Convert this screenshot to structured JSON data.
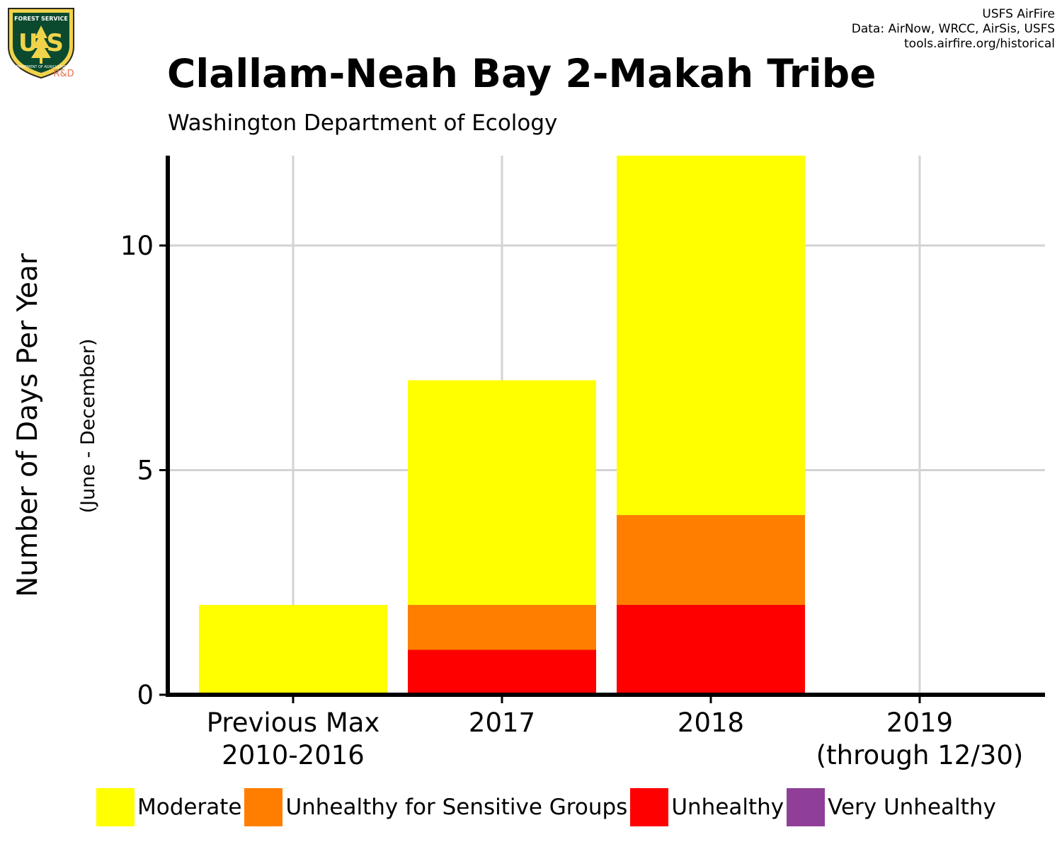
{
  "logo": {
    "top_text": "FOREST SERVICE",
    "letters": "U S",
    "bottom_text": "DEPARTMENT OF AGRICULTURE",
    "tag": "R&D"
  },
  "credits": {
    "line1": "USFS AirFire",
    "line2": "Data: AirNow, WRCC, AirSis, USFS",
    "line3": "tools.airfire.org/historical"
  },
  "chart_data": {
    "type": "bar",
    "stacked": true,
    "title": "Clallam-Neah Bay 2-Makah Tribe",
    "subtitle": "Washington Department of Ecology",
    "ylabel": "Number of Days Per Year",
    "ylabel_sub": "(June - December)",
    "xlabel": "",
    "categories": [
      [
        "Previous Max",
        "2010-2016"
      ],
      [
        "2017"
      ],
      [
        "2018"
      ],
      [
        "2019",
        "(through 12/30)"
      ]
    ],
    "ylim": [
      0,
      12
    ],
    "yticks": [
      0,
      5,
      10
    ],
    "grid": true,
    "legend_position": "bottom",
    "series": [
      {
        "name": "Unhealthy",
        "color": "#ff0000",
        "values": [
          0,
          1,
          2,
          0
        ]
      },
      {
        "name": "Unhealthy for Sensitive Groups",
        "color": "#ff7e00",
        "values": [
          0,
          1,
          2,
          0
        ]
      },
      {
        "name": "Moderate",
        "color": "#ffff00",
        "values": [
          2,
          5,
          8,
          0
        ]
      },
      {
        "name": "Very Unhealthy",
        "color": "#8f3f97",
        "values": [
          0,
          0,
          0,
          0
        ]
      }
    ],
    "legend_order": [
      "Moderate",
      "Unhealthy for Sensitive Groups",
      "Unhealthy",
      "Very Unhealthy"
    ]
  }
}
